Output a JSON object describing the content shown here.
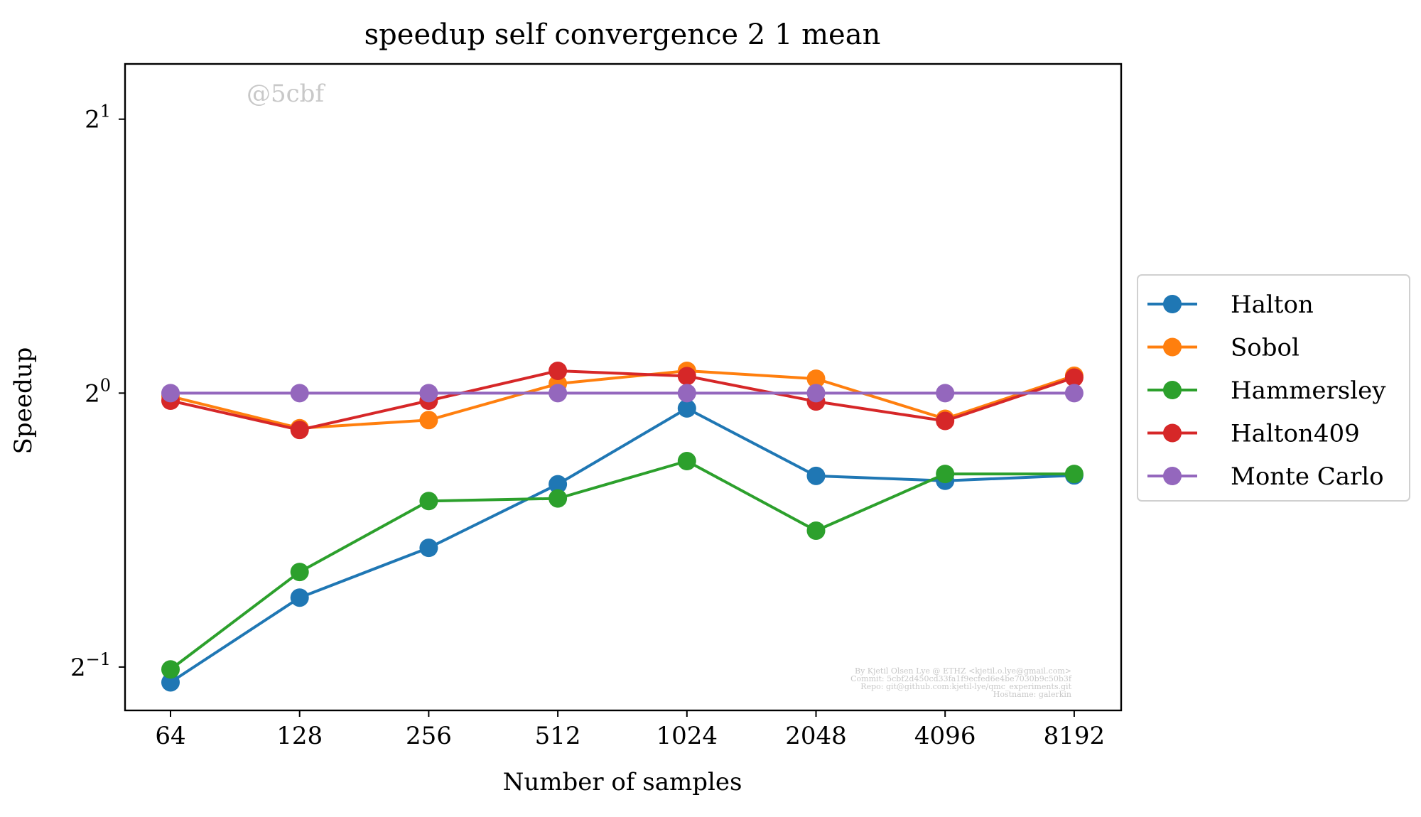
{
  "chart_data": {
    "type": "line",
    "title": "speedup self convergence 2 1 mean",
    "xlabel": "Number of samples",
    "ylabel": "Speedup",
    "x_scale": "categorical",
    "y_scale": "log2",
    "categories": [
      "64",
      "128",
      "256",
      "512",
      "1024",
      "2048",
      "4096",
      "8192"
    ],
    "ylim": [
      0.448,
      2.3
    ],
    "y_ticks": [
      {
        "value": 0.5,
        "base": "2",
        "exp": "−1"
      },
      {
        "value": 1,
        "base": "2",
        "exp": "0"
      },
      {
        "value": 2,
        "base": "2",
        "exp": "1"
      }
    ],
    "grid": false,
    "legend_position": "outside-right",
    "series": [
      {
        "name": "Halton",
        "color": "#1f77b4",
        "values": [
          0.481,
          0.596,
          0.676,
          0.794,
          0.962,
          0.811,
          0.801,
          0.812
        ]
      },
      {
        "name": "Sobol",
        "color": "#ff7f0e",
        "values": [
          0.992,
          0.915,
          0.934,
          1.024,
          1.058,
          1.037,
          0.937,
          1.045
        ]
      },
      {
        "name": "Hammersley",
        "color": "#2ca02c",
        "values": [
          0.497,
          0.636,
          0.761,
          0.766,
          0.842,
          0.706,
          0.815,
          0.815
        ]
      },
      {
        "name": "Halton409",
        "color": "#d62728",
        "values": [
          0.981,
          0.911,
          0.981,
          1.058,
          1.044,
          0.979,
          0.932,
          1.04
        ]
      },
      {
        "name": "Monte Carlo",
        "color": "#9467bd",
        "values": [
          1,
          1,
          1,
          1,
          1,
          1,
          1,
          1
        ]
      }
    ],
    "annotations": {
      "watermark": "@5cbf",
      "footer_lines": [
        "By Kjetil Olsen Lye @ ETHZ <kjetil.o.lye@gmail.com>",
        "Commit: 5cbf2d450cd33fa1f9ecfed6e4be7030b9c50b3f",
        "Repo: git@github.com:kjetil-lye/qmc_experiments.git",
        "Hostname: galerkin"
      ]
    }
  }
}
